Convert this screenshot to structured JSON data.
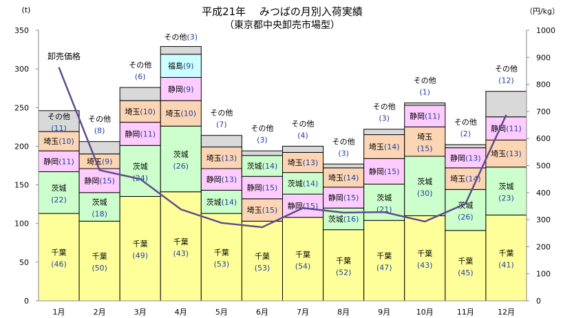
{
  "chart_data": {
    "type": "bar",
    "stacked": true,
    "title": "平成21年　 みつばの月別入荷実績",
    "subtitle": "（東京都中央卸売市場型）",
    "ylabel": "(t)",
    "y2label": "（円/kg）",
    "ylim": [
      0,
      350
    ],
    "y2lim": [
      0,
      1000
    ],
    "yticks": [
      0,
      50,
      100,
      150,
      200,
      250,
      300,
      350
    ],
    "y2ticks": [
      0,
      100,
      200,
      300,
      400,
      500,
      600,
      700,
      800,
      900,
      1000
    ],
    "categories": [
      "1月",
      "2月",
      "3月",
      "4月",
      "5月",
      "6月",
      "7月",
      "8月",
      "9月",
      "10月",
      "11月",
      "12月"
    ],
    "other_label": "その他",
    "colors": {
      "千葉": "#FFFF99",
      "茨城": "#CCFFCC",
      "静岡": "#FFCCFF",
      "埼玉": "#FCD5B4",
      "福島": "#CCFFFF",
      "その他": "#D9D9D9",
      "line": "#5F4B8B",
      "share_text": "#1F3FA0"
    },
    "bars": [
      {
        "segments": [
          {
            "name": "千葉",
            "value": 113,
            "share": 46
          },
          {
            "name": "茨城",
            "value": 54,
            "share": 22
          },
          {
            "name": "静岡",
            "value": 27,
            "share": 11
          },
          {
            "name": "埼玉",
            "value": 25,
            "share": 10
          },
          {
            "name": "その他",
            "value": 27,
            "share": 11
          }
        ]
      },
      {
        "segments": [
          {
            "name": "千葉",
            "value": 103,
            "share": 50
          },
          {
            "name": "茨城",
            "value": 37,
            "share": 18
          },
          {
            "name": "静岡",
            "value": 31,
            "share": 15
          },
          {
            "name": "埼玉",
            "value": 19,
            "share": 9
          },
          {
            "name": "その他",
            "value": 16,
            "share": 8
          }
        ]
      },
      {
        "segments": [
          {
            "name": "千葉",
            "value": 135,
            "share": 49
          },
          {
            "name": "茨城",
            "value": 66,
            "share": 24
          },
          {
            "name": "静岡",
            "value": 30,
            "share": 11
          },
          {
            "name": "埼玉",
            "value": 28,
            "share": 10
          },
          {
            "name": "その他",
            "value": 17,
            "share": 6
          }
        ]
      },
      {
        "segments": [
          {
            "name": "千葉",
            "value": 141,
            "share": 43
          },
          {
            "name": "茨城",
            "value": 85,
            "share": 26
          },
          {
            "name": "埼玉",
            "value": 33,
            "share": 10
          },
          {
            "name": "静岡",
            "value": 30,
            "share": 9
          },
          {
            "name": "福島",
            "value": 30,
            "share": 9
          },
          {
            "name": "その他",
            "value": 10,
            "share": 3
          }
        ]
      },
      {
        "segments": [
          {
            "name": "千葉",
            "value": 113,
            "share": 53
          },
          {
            "name": "茨城",
            "value": 30,
            "share": 14
          },
          {
            "name": "静岡",
            "value": 28,
            "share": 13
          },
          {
            "name": "埼玉",
            "value": 28,
            "share": 13
          },
          {
            "name": "その他",
            "value": 15,
            "share": 7
          }
        ]
      },
      {
        "segments": [
          {
            "name": "千葉",
            "value": 103,
            "share": 53
          },
          {
            "name": "埼玉",
            "value": 29,
            "share": 15
          },
          {
            "name": "静岡",
            "value": 29,
            "share": 15
          },
          {
            "name": "茨城",
            "value": 27,
            "share": 14
          },
          {
            "name": "その他",
            "value": 6,
            "share": 3
          }
        ]
      },
      {
        "segments": [
          {
            "name": "千葉",
            "value": 108,
            "share": 54
          },
          {
            "name": "静岡",
            "value": 30,
            "share": 15
          },
          {
            "name": "茨城",
            "value": 28,
            "share": 14
          },
          {
            "name": "埼玉",
            "value": 26,
            "share": 13
          },
          {
            "name": "その他",
            "value": 8,
            "share": 4
          }
        ]
      },
      {
        "segments": [
          {
            "name": "千葉",
            "value": 92,
            "share": 52
          },
          {
            "name": "茨城",
            "value": 28,
            "share": 16
          },
          {
            "name": "静岡",
            "value": 27,
            "share": 15
          },
          {
            "name": "埼玉",
            "value": 25,
            "share": 14
          },
          {
            "name": "その他",
            "value": 5,
            "share": 3
          }
        ]
      },
      {
        "segments": [
          {
            "name": "千葉",
            "value": 104,
            "share": 47
          },
          {
            "name": "茨城",
            "value": 47,
            "share": 21
          },
          {
            "name": "静岡",
            "value": 33,
            "share": 15
          },
          {
            "name": "埼玉",
            "value": 31,
            "share": 14
          },
          {
            "name": "その他",
            "value": 7,
            "share": 3
          }
        ]
      },
      {
        "segments": [
          {
            "name": "千葉",
            "value": 110,
            "share": 43
          },
          {
            "name": "茨城",
            "value": 77,
            "share": 30
          },
          {
            "name": "埼玉",
            "value": 38,
            "share": 15
          },
          {
            "name": "静岡",
            "value": 28,
            "share": 11
          },
          {
            "name": "その他",
            "value": 3,
            "share": 1
          }
        ]
      },
      {
        "segments": [
          {
            "name": "千葉",
            "value": 91,
            "share": 45
          },
          {
            "name": "茨城",
            "value": 53,
            "share": 26
          },
          {
            "name": "埼玉",
            "value": 28,
            "share": 14
          },
          {
            "name": "静岡",
            "value": 26,
            "share": 13
          },
          {
            "name": "その他",
            "value": 4,
            "share": 2
          }
        ]
      },
      {
        "segments": [
          {
            "name": "千葉",
            "value": 111,
            "share": 41
          },
          {
            "name": "茨城",
            "value": 62,
            "share": 23
          },
          {
            "name": "埼玉",
            "value": 35,
            "share": 13
          },
          {
            "name": "静岡",
            "value": 30,
            "share": 11
          },
          {
            "name": "その他",
            "value": 33,
            "share": 12
          }
        ]
      }
    ],
    "line": {
      "name": "卸売価格",
      "axis": "right",
      "values": [
        863,
        483,
        450,
        338,
        288,
        272,
        343,
        326,
        328,
        293,
        359,
        687
      ]
    }
  }
}
